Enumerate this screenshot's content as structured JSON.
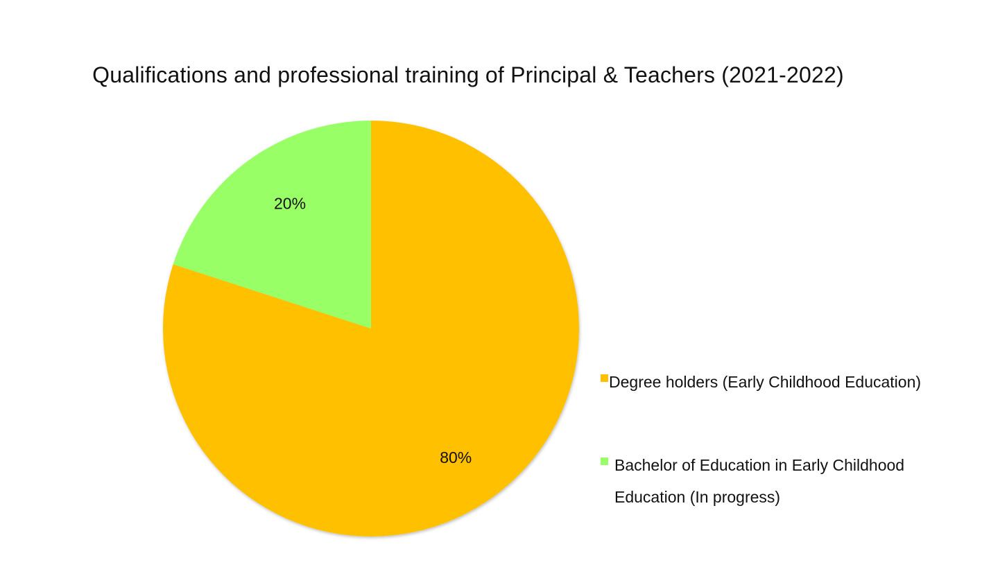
{
  "chart_data": {
    "type": "pie",
    "title": "Qualifications and professional training of Principal & Teachers (2021-2022)",
    "categories": [
      "Degree holders (Early Childhood Education)",
      "Bachelor of Education in Early Childhood Education (In progress)"
    ],
    "values": [
      80,
      20
    ],
    "data_labels": [
      "80%",
      "20%"
    ],
    "colors": [
      "#FFC000",
      "#99FF66"
    ],
    "start_angle_deg": 0,
    "direction": "clockwise",
    "legend_position": "right",
    "legend": [
      {
        "label": "Degree holders (Early Childhood Education)",
        "color": "#FFC000"
      },
      {
        "label": "Bachelor of Education in Early Childhood Education (In progress)",
        "color": "#99FF66"
      }
    ]
  }
}
